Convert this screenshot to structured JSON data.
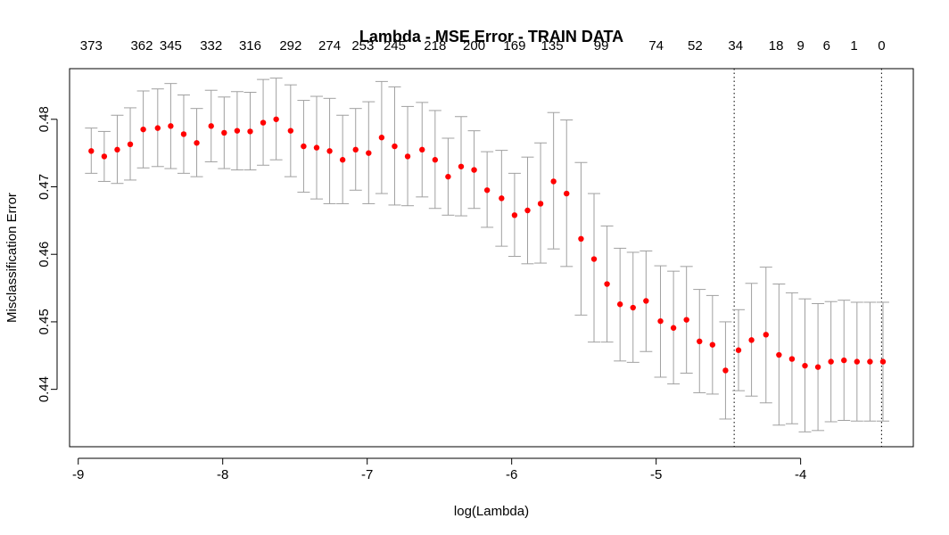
{
  "chart_data": {
    "type": "scatter",
    "title": "Lambda - MSE Error - TRAIN DATA",
    "xlabel": "log(Lambda)",
    "ylabel": "Misclassification Error",
    "xlim": [
      -9.06,
      -3.22
    ],
    "ylim": [
      0.4315,
      0.4875
    ],
    "x_ticks": [
      -9,
      -8,
      -7,
      -6,
      -5,
      -4
    ],
    "x_tick_labels": [
      "-9",
      "-8",
      "-7",
      "-6",
      "-5",
      "-4"
    ],
    "y_ticks": [
      0.44,
      0.45,
      0.46,
      0.47,
      0.48
    ],
    "y_tick_labels": [
      "0.44",
      "0.45",
      "0.46",
      "0.47",
      "0.48"
    ],
    "top_axis": {
      "x": [
        -8.91,
        -8.56,
        -8.36,
        -8.08,
        -7.81,
        -7.53,
        -7.26,
        -7.03,
        -6.81,
        -6.53,
        -6.26,
        -5.98,
        -5.72,
        -5.38,
        -5.0,
        -4.73,
        -4.45,
        -4.17,
        -4.0,
        -3.82,
        -3.63,
        -3.44
      ],
      "labels": [
        "373",
        "362",
        "345",
        "332",
        "316",
        "292",
        "274",
        "253",
        "245",
        "218",
        "200",
        "169",
        "135",
        "99",
        "74",
        "52",
        "34",
        "18",
        "9",
        "6",
        "1",
        "0"
      ]
    },
    "marker_color": "#ff0000",
    "errorbar_color": "#a0a0a0",
    "vertical_lines_x": [
      -4.46,
      -3.44
    ],
    "grid": false,
    "series": [
      {
        "x": [
          -8.91,
          -8.82,
          -8.73,
          -8.64,
          -8.55,
          -8.45,
          -8.36,
          -8.27,
          -8.18,
          -8.08,
          -7.99,
          -7.9,
          -7.81,
          -7.72,
          -7.63,
          -7.53,
          -7.44,
          -7.35,
          -7.26,
          -7.17,
          -7.08,
          -6.99,
          -6.9,
          -6.81,
          -6.72,
          -6.62,
          -6.53,
          -6.44,
          -6.35,
          -6.26,
          -6.17,
          -6.07,
          -5.98,
          -5.89,
          -5.8,
          -5.71,
          -5.62,
          -5.52,
          -5.43,
          -5.34,
          -5.25,
          -5.16,
          -5.07,
          -4.97,
          -4.88,
          -4.79,
          -4.7,
          -4.61,
          -4.52,
          -4.43,
          -4.34,
          -4.24,
          -4.15,
          -4.06,
          -3.97,
          -3.88,
          -3.79,
          -3.7,
          -3.61,
          -3.52,
          -3.43
        ],
        "y": [
          0.4753,
          0.4745,
          0.4755,
          0.4763,
          0.4785,
          0.4787,
          0.479,
          0.4778,
          0.4765,
          0.479,
          0.478,
          0.4783,
          0.4782,
          0.4795,
          0.48,
          0.4783,
          0.476,
          0.4758,
          0.4753,
          0.474,
          0.4755,
          0.475,
          0.4773,
          0.476,
          0.4745,
          0.4755,
          0.474,
          0.4715,
          0.473,
          0.4725,
          0.4695,
          0.4683,
          0.4658,
          0.4665,
          0.4675,
          0.4708,
          0.469,
          0.4623,
          0.4593,
          0.4556,
          0.4526,
          0.4521,
          0.4531,
          0.4501,
          0.4491,
          0.4503,
          0.4471,
          0.4466,
          0.4428,
          0.4458,
          0.4473,
          0.4481,
          0.4451,
          0.4445,
          0.4435,
          0.4433,
          0.4441,
          0.4443,
          0.4441,
          0.4441,
          0.4441
        ],
        "lower": [
          0.472,
          0.4708,
          0.4705,
          0.471,
          0.4728,
          0.473,
          0.4727,
          0.472,
          0.4715,
          0.4737,
          0.4727,
          0.4725,
          0.4725,
          0.4732,
          0.474,
          0.4715,
          0.4692,
          0.4682,
          0.4675,
          0.4675,
          0.4695,
          0.4675,
          0.469,
          0.4673,
          0.4672,
          0.4685,
          0.4668,
          0.4658,
          0.4657,
          0.4668,
          0.464,
          0.4612,
          0.4597,
          0.4586,
          0.4587,
          0.4608,
          0.4582,
          0.451,
          0.447,
          0.447,
          0.4442,
          0.444,
          0.4456,
          0.4418,
          0.4408,
          0.4424,
          0.4395,
          0.4393,
          0.4356,
          0.4398,
          0.439,
          0.438,
          0.4347,
          0.4349,
          0.4337,
          0.4339,
          0.4352,
          0.4354,
          0.4353,
          0.4353,
          0.4353
        ],
        "upper": [
          0.4787,
          0.4782,
          0.4806,
          0.4817,
          0.4842,
          0.4845,
          0.4853,
          0.4836,
          0.4816,
          0.4843,
          0.4833,
          0.4841,
          0.484,
          0.4859,
          0.4861,
          0.4851,
          0.4828,
          0.4834,
          0.4831,
          0.4806,
          0.4816,
          0.4826,
          0.4856,
          0.4848,
          0.4819,
          0.4825,
          0.4813,
          0.4772,
          0.4804,
          0.4783,
          0.4752,
          0.4754,
          0.472,
          0.4744,
          0.4765,
          0.481,
          0.4799,
          0.4736,
          0.469,
          0.4642,
          0.4609,
          0.4603,
          0.4605,
          0.4583,
          0.4575,
          0.4582,
          0.4548,
          0.4539,
          0.45,
          0.4518,
          0.4557,
          0.4581,
          0.4556,
          0.4543,
          0.4534,
          0.4527,
          0.453,
          0.4532,
          0.4529,
          0.4529,
          0.4529
        ]
      }
    ]
  }
}
